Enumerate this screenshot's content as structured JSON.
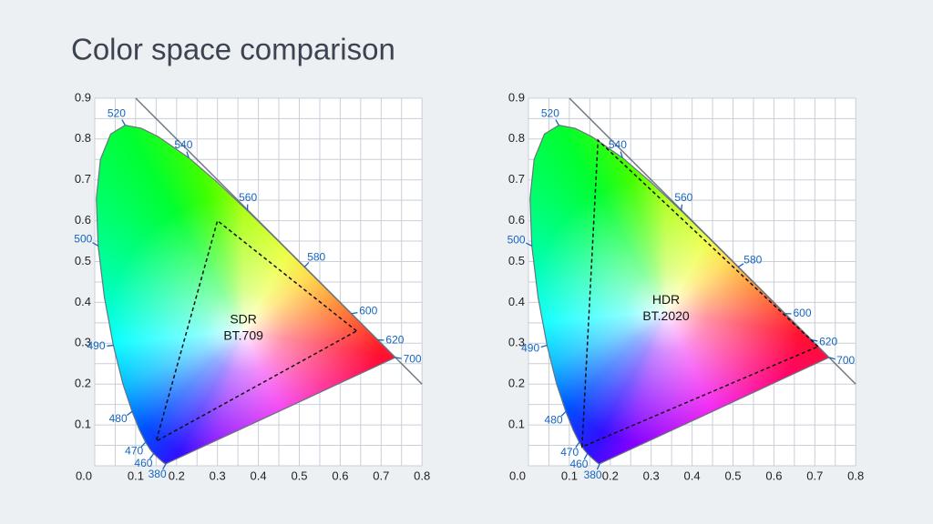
{
  "title": "Color space comparison",
  "chart_data": [
    {
      "type": "chromaticity",
      "xlim": [
        0,
        0.8
      ],
      "ylim": [
        0,
        0.9
      ],
      "xticks": [
        {
          "value": 0,
          "label": "0.0"
        },
        0.1,
        0.2,
        0.3,
        0.4,
        0.5,
        0.6,
        0.7,
        0.8
      ],
      "yticks": [
        0.1,
        0.2,
        0.3,
        0.4,
        0.5,
        0.6,
        0.7,
        0.8,
        0.9
      ],
      "xgrid": [
        0,
        0.05,
        0.1,
        0.15,
        0.2,
        0.25,
        0.3,
        0.35,
        0.4,
        0.45,
        0.5,
        0.55,
        0.6,
        0.65,
        0.7,
        0.75,
        0.8
      ],
      "ygrid": [
        0,
        0.05,
        0.1,
        0.15,
        0.2,
        0.25,
        0.3,
        0.35,
        0.4,
        0.45,
        0.5,
        0.55,
        0.6,
        0.65,
        0.7,
        0.75,
        0.8,
        0.85,
        0.9
      ],
      "locus": {
        "label": [
          380,
          null,
          null,
          null,
          460,
          null,
          470,
          null,
          480,
          null,
          490,
          null,
          500,
          null,
          null,
          null,
          520,
          null,
          null,
          540,
          null,
          560,
          null,
          580,
          null,
          600,
          null,
          620,
          null,
          null,
          700
        ],
        "x": [
          0.1741,
          0.1714,
          0.1644,
          0.1566,
          0.144,
          0.1355,
          0.1241,
          0.1096,
          0.0913,
          0.0687,
          0.0454,
          0.0235,
          0.0082,
          0.0039,
          0.0139,
          0.0389,
          0.0743,
          0.1142,
          0.1547,
          0.2296,
          0.3016,
          0.3731,
          0.4441,
          0.5125,
          0.5752,
          0.627,
          0.6658,
          0.6915,
          0.719,
          0.73,
          0.7347
        ],
        "y": [
          0.005,
          0.0051,
          0.0109,
          0.0177,
          0.0297,
          0.0399,
          0.0578,
          0.0868,
          0.1327,
          0.2007,
          0.295,
          0.4127,
          0.5384,
          0.6548,
          0.7502,
          0.812,
          0.8338,
          0.8262,
          0.8059,
          0.7543,
          0.6923,
          0.6245,
          0.5547,
          0.4866,
          0.4242,
          0.3725,
          0.334,
          0.3083,
          0.2809,
          0.27,
          0.2653
        ]
      },
      "boundary": {
        "x": [
          0.1,
          0.8
        ],
        "y": [
          0.9,
          0.2
        ]
      },
      "gamut": {
        "x": [
          0.64,
          0.3,
          0.15
        ],
        "y": [
          0.33,
          0.6,
          0.06
        ]
      },
      "gamut_label": [
        "SDR",
        "BT.709"
      ]
    },
    {
      "type": "chromaticity",
      "xlim": [
        0,
        0.8
      ],
      "ylim": [
        0,
        0.9
      ],
      "xticks": [
        {
          "value": 0,
          "label": "0.0"
        },
        0.1,
        0.2,
        0.3,
        0.4,
        0.5,
        0.6,
        0.7,
        0.8
      ],
      "yticks": [
        0.1,
        0.2,
        0.3,
        0.4,
        0.5,
        0.6,
        0.7,
        0.8,
        0.9
      ],
      "xgrid": [
        0,
        0.05,
        0.1,
        0.15,
        0.2,
        0.25,
        0.3,
        0.35,
        0.4,
        0.45,
        0.5,
        0.55,
        0.6,
        0.65,
        0.7,
        0.75,
        0.8
      ],
      "ygrid": [
        0,
        0.05,
        0.1,
        0.15,
        0.2,
        0.25,
        0.3,
        0.35,
        0.4,
        0.45,
        0.5,
        0.55,
        0.6,
        0.65,
        0.7,
        0.75,
        0.8,
        0.85,
        0.9
      ],
      "locus": {
        "label": [
          380,
          null,
          null,
          null,
          460,
          null,
          470,
          null,
          480,
          null,
          490,
          null,
          500,
          null,
          null,
          null,
          520,
          null,
          null,
          540,
          null,
          560,
          null,
          580,
          null,
          600,
          null,
          620,
          null,
          null,
          700
        ],
        "x": [
          0.1741,
          0.1714,
          0.1644,
          0.1566,
          0.144,
          0.1355,
          0.1241,
          0.1096,
          0.0913,
          0.0687,
          0.0454,
          0.0235,
          0.0082,
          0.0039,
          0.0139,
          0.0389,
          0.0743,
          0.1142,
          0.1547,
          0.2296,
          0.3016,
          0.3731,
          0.4441,
          0.5125,
          0.5752,
          0.627,
          0.6658,
          0.6915,
          0.719,
          0.73,
          0.7347
        ],
        "y": [
          0.005,
          0.0051,
          0.0109,
          0.0177,
          0.0297,
          0.0399,
          0.0578,
          0.0868,
          0.1327,
          0.2007,
          0.295,
          0.4127,
          0.5384,
          0.6548,
          0.7502,
          0.812,
          0.8338,
          0.8262,
          0.8059,
          0.7543,
          0.6923,
          0.6245,
          0.5547,
          0.4866,
          0.4242,
          0.3725,
          0.334,
          0.3083,
          0.2809,
          0.27,
          0.2653
        ]
      },
      "boundary": {
        "x": [
          0.1,
          0.8
        ],
        "y": [
          0.9,
          0.2
        ]
      },
      "gamut": {
        "x": [
          0.708,
          0.17,
          0.131
        ],
        "y": [
          0.292,
          0.797,
          0.046
        ]
      },
      "gamut_label": [
        "HDR",
        "BT.2020"
      ]
    }
  ]
}
